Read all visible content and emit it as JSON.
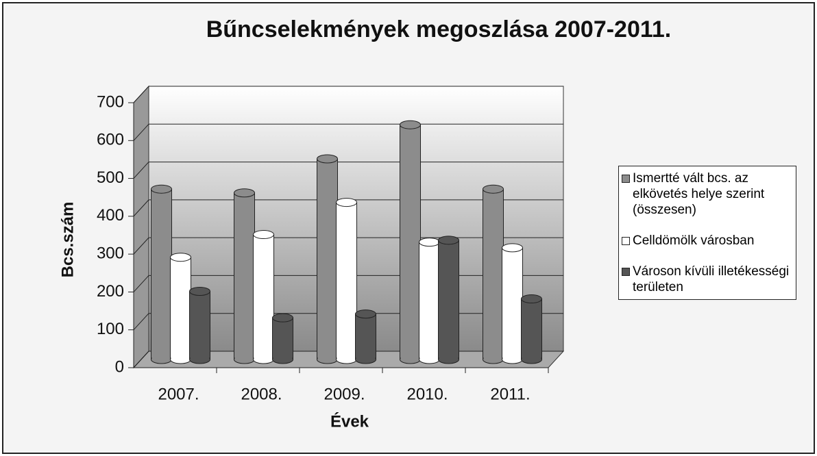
{
  "chart_data": {
    "type": "bar3d",
    "title": "Bűncselekmények megoszlása 2007-2011.",
    "categories": [
      "2007.",
      "2008.",
      "2009.",
      "2010.",
      "2011."
    ],
    "series": [
      {
        "name": "Ismertté vált bcs. az elkövetés helye szerint (összesen)",
        "color": "#8c8c8c",
        "values": [
          450,
          440,
          530,
          620,
          450
        ]
      },
      {
        "name": "Celldömölk városban",
        "color": "#ffffff",
        "values": [
          270,
          330,
          415,
          310,
          295
        ]
      },
      {
        "name": "Városon kívüli illetékességi területen",
        "color": "#555555",
        "values": [
          180,
          110,
          120,
          315,
          160
        ]
      }
    ],
    "ylabel": "Bcs.szám",
    "xlabel": "Évek",
    "ylim": [
      0,
      700
    ],
    "yticks": [
      0,
      100,
      200,
      300,
      400,
      500,
      600,
      700
    ],
    "grid": true,
    "legend": "right"
  }
}
